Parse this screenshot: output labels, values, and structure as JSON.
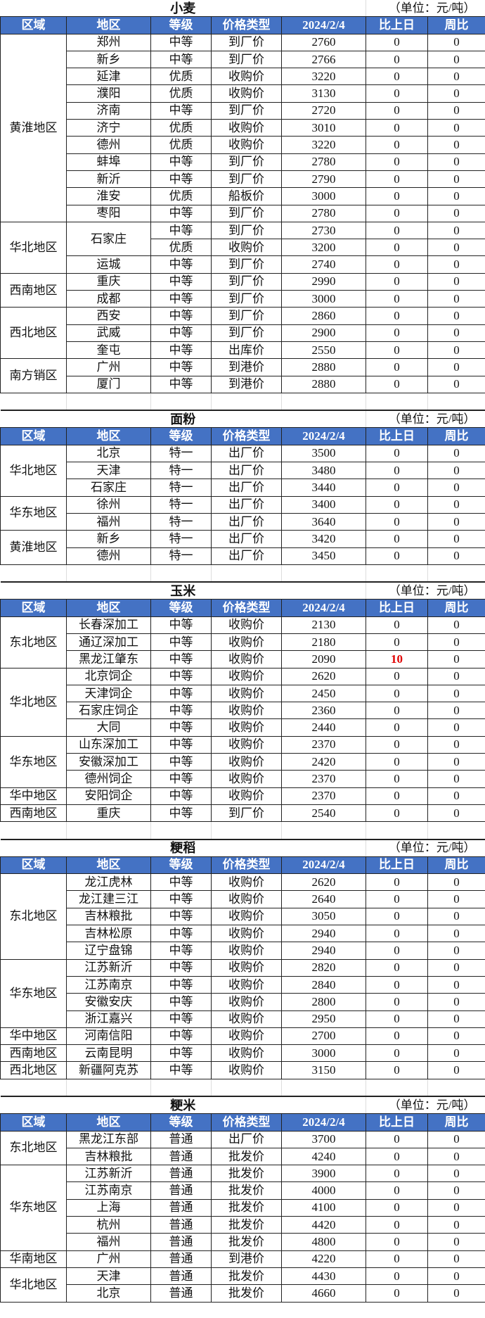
{
  "unit_label": "（单位：元/吨）",
  "headers": [
    "区域",
    "地区",
    "等级",
    "价格类型",
    "2024/2/4",
    "比上日",
    "周比"
  ],
  "highlight_color": "#e00000",
  "header_bg": "#4472C4",
  "sections": [
    {
      "title": "小麦",
      "spacer": true,
      "groups": [
        {
          "region": "黄淮地区",
          "rows": [
            [
              "郑州",
              "中等",
              "到厂价",
              "2760",
              "0",
              "0"
            ],
            [
              "新乡",
              "中等",
              "到厂价",
              "2766",
              "0",
              "0"
            ],
            [
              "延津",
              "优质",
              "收购价",
              "3220",
              "0",
              "0"
            ],
            [
              "濮阳",
              "优质",
              "收购价",
              "3130",
              "0",
              "0"
            ],
            [
              "济南",
              "中等",
              "到厂价",
              "2720",
              "0",
              "0"
            ],
            [
              "济宁",
              "优质",
              "收购价",
              "3010",
              "0",
              "0"
            ],
            [
              "德州",
              "优质",
              "收购价",
              "3220",
              "0",
              "0"
            ],
            [
              "蚌埠",
              "中等",
              "到厂价",
              "2780",
              "0",
              "0"
            ],
            [
              "新沂",
              "中等",
              "到厂价",
              "2790",
              "0",
              "0"
            ],
            [
              "淮安",
              "优质",
              "船板价",
              "3000",
              "0",
              "0"
            ],
            [
              "枣阳",
              "中等",
              "到厂价",
              "2780",
              "0",
              "0"
            ]
          ]
        },
        {
          "region": "华北地区",
          "rows": [
            [
              "石家庄",
              "中等",
              "到厂价",
              "2730",
              "0",
              "0"
            ],
            [
              "",
              "优质",
              "收购价",
              "3200",
              "0",
              "0"
            ],
            [
              "运城",
              "中等",
              "到厂价",
              "2740",
              "0",
              "0"
            ]
          ],
          "merge_area": [
            0,
            1
          ]
        },
        {
          "region": "西南地区",
          "rows": [
            [
              "重庆",
              "中等",
              "到厂价",
              "2990",
              "0",
              "0"
            ],
            [
              "成都",
              "中等",
              "到厂价",
              "3000",
              "0",
              "0"
            ]
          ]
        },
        {
          "region": "西北地区",
          "rows": [
            [
              "西安",
              "中等",
              "到厂价",
              "2860",
              "0",
              "0"
            ],
            [
              "武威",
              "中等",
              "到厂价",
              "2900",
              "0",
              "0"
            ],
            [
              "奎屯",
              "中等",
              "出库价",
              "2550",
              "0",
              "0"
            ]
          ]
        },
        {
          "region": "南方销区",
          "rows": [
            [
              "广州",
              "中等",
              "到港价",
              "2880",
              "0",
              "0"
            ],
            [
              "厦门",
              "中等",
              "到港价",
              "2880",
              "0",
              "0"
            ]
          ]
        }
      ]
    },
    {
      "title": "面粉",
      "spacer": true,
      "groups": [
        {
          "region": "华北地区",
          "rows": [
            [
              "北京",
              "特一",
              "出厂价",
              "3500",
              "0",
              "0"
            ],
            [
              "天津",
              "特一",
              "出厂价",
              "3480",
              "0",
              "0"
            ],
            [
              "石家庄",
              "特一",
              "出厂价",
              "3440",
              "0",
              "0"
            ]
          ]
        },
        {
          "region": "华东地区",
          "rows": [
            [
              "徐州",
              "特一",
              "出厂价",
              "3400",
              "0",
              "0"
            ],
            [
              "福州",
              "特一",
              "出厂价",
              "3640",
              "0",
              "0"
            ]
          ]
        },
        {
          "region": "黄淮地区",
          "rows": [
            [
              "新乡",
              "特一",
              "出厂价",
              "3420",
              "0",
              "0"
            ],
            [
              "德州",
              "特一",
              "出厂价",
              "3450",
              "0",
              "0"
            ]
          ]
        }
      ]
    },
    {
      "title": "玉米",
      "spacer": true,
      "groups": [
        {
          "region": "东北地区",
          "rows": [
            [
              "长春深加工",
              "中等",
              "收购价",
              "2130",
              "0",
              "0"
            ],
            [
              "通辽深加工",
              "中等",
              "收购价",
              "2180",
              "0",
              "0"
            ],
            [
              "黑龙江肇东",
              "中等",
              "收购价",
              "2090",
              "10",
              "0"
            ]
          ]
        },
        {
          "region": "华北地区",
          "rows": [
            [
              "北京饲企",
              "中等",
              "收购价",
              "2620",
              "0",
              "0"
            ],
            [
              "天津饲企",
              "中等",
              "收购价",
              "2450",
              "0",
              "0"
            ],
            [
              "石家庄饲企",
              "中等",
              "收购价",
              "2360",
              "0",
              "0"
            ],
            [
              "大同",
              "中等",
              "收购价",
              "2440",
              "0",
              "0"
            ]
          ]
        },
        {
          "region": "华东地区",
          "rows": [
            [
              "山东深加工",
              "中等",
              "收购价",
              "2370",
              "0",
              "0"
            ],
            [
              "安徽深加工",
              "中等",
              "收购价",
              "2420",
              "0",
              "0"
            ],
            [
              "德州饲企",
              "中等",
              "收购价",
              "2370",
              "0",
              "0"
            ]
          ]
        },
        {
          "region": "华中地区",
          "rows": [
            [
              "安阳饲企",
              "中等",
              "收购价",
              "2370",
              "0",
              "0"
            ]
          ]
        },
        {
          "region": "西南地区",
          "rows": [
            [
              "重庆",
              "中等",
              "到厂价",
              "2540",
              "0",
              "0"
            ]
          ]
        }
      ]
    },
    {
      "title": "粳稻",
      "spacer": true,
      "groups": [
        {
          "region": "东北地区",
          "rows": [
            [
              "龙江虎林",
              "中等",
              "收购价",
              "2620",
              "0",
              "0"
            ],
            [
              "龙江建三江",
              "中等",
              "收购价",
              "2640",
              "0",
              "0"
            ],
            [
              "吉林粮批",
              "中等",
              "收购价",
              "3050",
              "0",
              "0"
            ],
            [
              "吉林松原",
              "中等",
              "收购价",
              "2940",
              "0",
              "0"
            ],
            [
              "辽宁盘锦",
              "中等",
              "收购价",
              "2940",
              "0",
              "0"
            ]
          ]
        },
        {
          "region": "华东地区",
          "rows": [
            [
              "江苏新沂",
              "中等",
              "收购价",
              "2820",
              "0",
              "0"
            ],
            [
              "江苏南京",
              "中等",
              "收购价",
              "2840",
              "0",
              "0"
            ],
            [
              "安徽安庆",
              "中等",
              "收购价",
              "2800",
              "0",
              "0"
            ],
            [
              "浙江嘉兴",
              "中等",
              "收购价",
              "2950",
              "0",
              "0"
            ]
          ]
        },
        {
          "region": "华中地区",
          "rows": [
            [
              "河南信阳",
              "中等",
              "收购价",
              "2700",
              "0",
              "0"
            ]
          ]
        },
        {
          "region": "西南地区",
          "rows": [
            [
              "云南昆明",
              "中等",
              "收购价",
              "3000",
              "0",
              "0"
            ]
          ]
        },
        {
          "region": "西北地区",
          "rows": [
            [
              "新疆阿克苏",
              "中等",
              "收购价",
              "3150",
              "0",
              "0"
            ]
          ]
        }
      ]
    },
    {
      "title": "粳米",
      "spacer": false,
      "groups": [
        {
          "region": "东北地区",
          "rows": [
            [
              "黑龙江东部",
              "普通",
              "出厂价",
              "3700",
              "0",
              "0"
            ],
            [
              "吉林粮批",
              "普通",
              "批发价",
              "4240",
              "0",
              "0"
            ]
          ]
        },
        {
          "region": "华东地区",
          "rows": [
            [
              "江苏新沂",
              "普通",
              "批发价",
              "3900",
              "0",
              "0"
            ],
            [
              "江苏南京",
              "普通",
              "批发价",
              "4000",
              "0",
              "0"
            ],
            [
              "上海",
              "普通",
              "批发价",
              "4100",
              "0",
              "0"
            ],
            [
              "杭州",
              "普通",
              "批发价",
              "4420",
              "0",
              "0"
            ],
            [
              "福州",
              "普通",
              "批发价",
              "4800",
              "0",
              "0"
            ]
          ]
        },
        {
          "region": "华南地区",
          "rows": [
            [
              "广州",
              "普通",
              "到港价",
              "4220",
              "0",
              "0"
            ]
          ]
        },
        {
          "region": "华北地区",
          "rows": [
            [
              "天津",
              "普通",
              "批发价",
              "4430",
              "0",
              "0"
            ],
            [
              "北京",
              "普通",
              "批发价",
              "4660",
              "0",
              "0"
            ]
          ]
        }
      ]
    }
  ]
}
